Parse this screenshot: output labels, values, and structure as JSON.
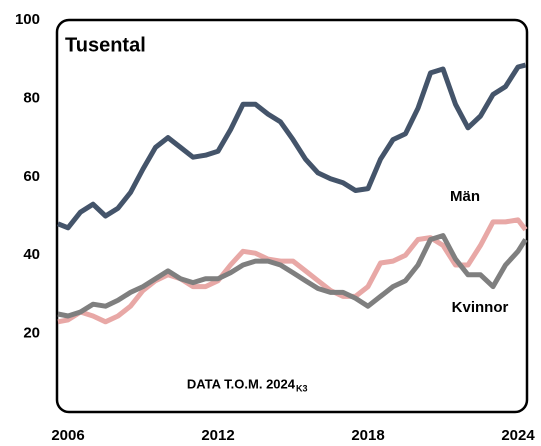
{
  "chart_data": {
    "type": "line",
    "title": "Tusental",
    "footnote": "DATA T.O.M. 2024",
    "footnote_sub": "K3",
    "x": [
      2005.6,
      2006,
      2006.5,
      2007,
      2007.5,
      2008,
      2008.5,
      2009,
      2009.5,
      2010,
      2010.5,
      2011,
      2011.5,
      2012,
      2012.5,
      2013,
      2013.5,
      2014,
      2014.5,
      2015,
      2015.5,
      2016,
      2016.5,
      2017,
      2017.5,
      2018,
      2018.5,
      2019,
      2019.5,
      2020,
      2020.5,
      2021,
      2021.5,
      2022,
      2022.5,
      2023,
      2023.5,
      2024,
      2024.3
    ],
    "series": [
      {
        "name": "Män",
        "color": "#e8a8a6",
        "values": [
          23,
          23.5,
          25.5,
          24.5,
          23,
          24.5,
          27,
          31,
          33.5,
          35,
          34,
          32,
          32,
          33.5,
          37.5,
          41,
          40.5,
          39,
          38.5,
          38.5,
          36,
          33.5,
          31,
          29.5,
          29.5,
          32,
          38,
          38.5,
          40,
          44,
          44.5,
          42.5,
          37.5,
          37.5,
          42.5,
          48.5,
          48.5,
          49,
          46.5
        ]
      },
      {
        "name": "Kvinnor",
        "color": "#7f7f7f",
        "values": [
          25,
          24.5,
          25.5,
          27.5,
          27,
          28.5,
          30.5,
          32,
          34,
          36,
          34,
          33,
          34,
          34,
          35.5,
          37.5,
          38.5,
          38.5,
          37.5,
          35.5,
          33.5,
          31.5,
          30.5,
          30.5,
          29,
          27,
          29.5,
          32,
          33.5,
          37.5,
          44,
          45,
          39,
          35,
          35,
          32,
          37.5,
          41,
          44
        ]
      },
      {
        "color": "#44546a",
        "values": [
          48,
          47,
          51,
          53,
          50,
          52,
          56,
          62,
          67.5,
          70,
          67.5,
          65,
          65.5,
          66.5,
          72,
          78.5,
          78.5,
          76,
          74,
          69.5,
          64.5,
          61,
          59.5,
          58.5,
          56.5,
          57,
          64.5,
          69.5,
          71,
          77.5,
          86.5,
          87.5,
          78.5,
          72.5,
          75.5,
          81,
          83,
          88,
          88.5
        ]
      }
    ],
    "xlim": [
      2005.56,
      2024.36
    ],
    "xticks": [
      2006,
      2012,
      2018,
      2024
    ],
    "ylim": [
      0,
      100
    ],
    "yticks": [
      20,
      40,
      60,
      80,
      100
    ]
  }
}
